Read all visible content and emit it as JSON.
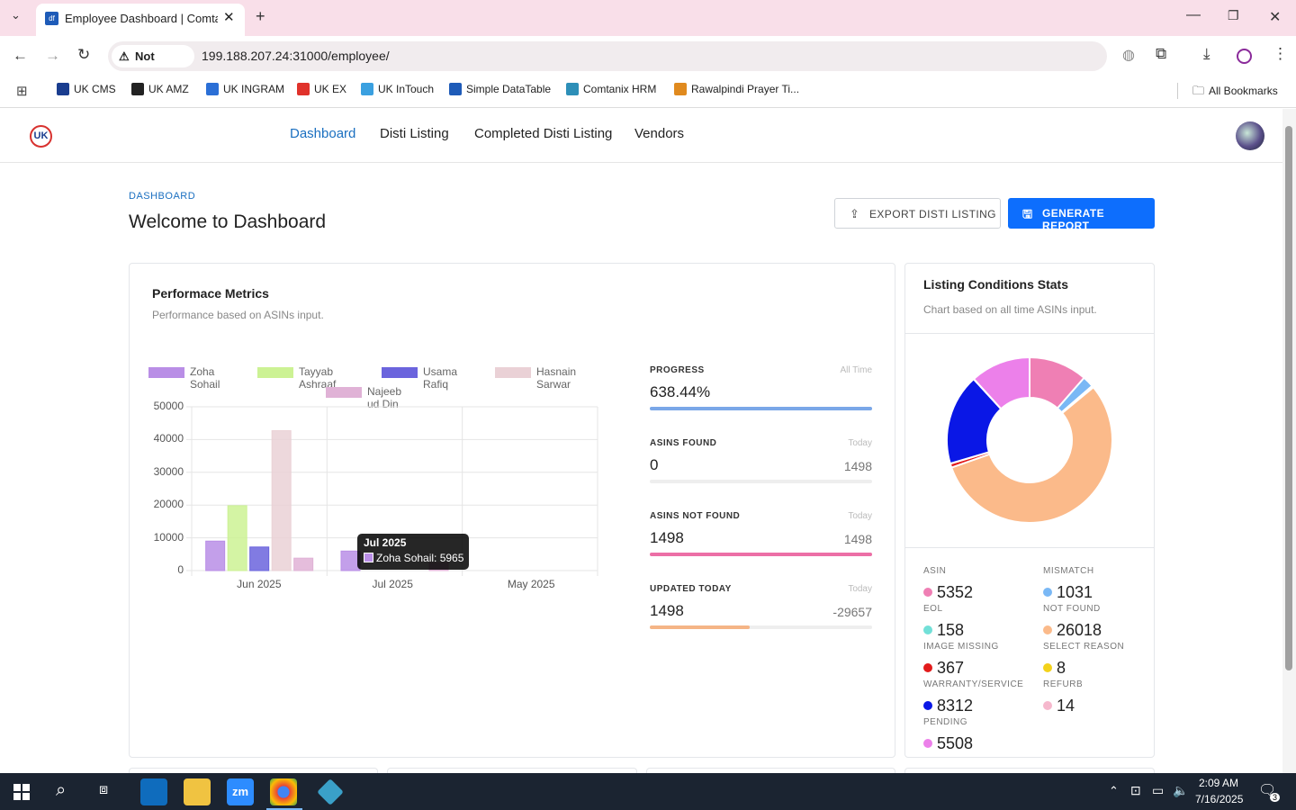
{
  "browser": {
    "tab_title": "Employee Dashboard | Comtani",
    "tab_favicon": "df",
    "not_secure": "Not secure",
    "url": "199.188.207.24:31000/employee/",
    "bookmarks": [
      {
        "label": "UK CMS",
        "color": "#1a3d8f"
      },
      {
        "label": "UK AMZ",
        "color": "#222222"
      },
      {
        "label": "UK INGRAM",
        "color": "#2b6fd6"
      },
      {
        "label": "UK EX",
        "color": "#e0322b"
      },
      {
        "label": "UK InTouch",
        "color": "#3aa0e0"
      },
      {
        "label": "Simple DataTable",
        "color": "#1e5bb8"
      },
      {
        "label": "Comtanix HRM",
        "color": "#2d8fb8"
      },
      {
        "label": "Rawalpindi Prayer Ti...",
        "color": "#e08a1e"
      }
    ],
    "all_bookmarks": "All Bookmarks"
  },
  "app": {
    "nav": [
      "Dashboard",
      "Disti Listing",
      "Completed Disti Listing",
      "Vendors"
    ],
    "breadcrumb": "DASHBOARD",
    "page_title": "Welcome to Dashboard",
    "export_btn": "EXPORT DISTI LISTING",
    "generate_btn": "GENERATE REPORT",
    "accent": "#0d6efd"
  },
  "perf": {
    "title": "Performace Metrics",
    "subtitle": "Performance based on ASINs input.",
    "tooltip_title": "Jul 2025",
    "tooltip_line": "Zoha Sohail: 5965",
    "stats": [
      {
        "label": "PROGRESS",
        "right": "All Time",
        "value": "638.44%",
        "value2": "",
        "fill": 1.0,
        "color": "#7aa7e8"
      },
      {
        "label": "ASINS FOUND",
        "right": "Today",
        "value": "0",
        "value2": "1498",
        "fill": 0,
        "color": "#7aa7e8"
      },
      {
        "label": "ASINS NOT FOUND",
        "right": "Today",
        "value": "1498",
        "value2": "1498",
        "fill": 1.0,
        "color": "#ec6fa6"
      },
      {
        "label": "UPDATED TODAY",
        "right": "Today",
        "value": "1498",
        "value2": "-29657",
        "fill": 0.45,
        "color": "#f5b586"
      }
    ]
  },
  "chart_data": {
    "type": "bar",
    "categories": [
      "Jun 2025",
      "Jul 2025",
      "May 2025"
    ],
    "ylim": [
      0,
      50000
    ],
    "yticks": [
      "50000",
      "40000",
      "30000",
      "20000",
      "10000",
      "0"
    ],
    "series": [
      {
        "name": "Zoha Sohail",
        "color": "#b98ee6",
        "values": [
          9000,
          5965,
          0
        ]
      },
      {
        "name": "Tayyab Ashraaf",
        "color": "#ccf294",
        "values": [
          19800,
          0,
          0
        ]
      },
      {
        "name": "Usama Rafiq",
        "color": "#6b64dd",
        "values": [
          7200,
          0,
          0
        ]
      },
      {
        "name": "Hasnain Sarwar",
        "color": "#ead1d6",
        "values": [
          42700,
          0,
          0
        ]
      },
      {
        "name": "Najeeb ud Din",
        "color": "#e0b2d6",
        "values": [
          3800,
          2500,
          0
        ]
      }
    ]
  },
  "listing": {
    "title": "Listing Conditions Stats",
    "subtitle": "Chart based on all time ASINs input.",
    "items": [
      {
        "label": "ASIN",
        "value": "5352",
        "color": "#ef7fb4"
      },
      {
        "label": "MISMATCH",
        "value": "1031",
        "color": "#7ab8f5"
      },
      {
        "label": "EOL",
        "value": "158",
        "color": "#72e0d8"
      },
      {
        "label": "NOT FOUND",
        "value": "26018",
        "color": "#fbba8a"
      },
      {
        "label": "IMAGE MISSING",
        "value": "367",
        "color": "#e21b1b"
      },
      {
        "label": "SELECT REASON",
        "value": "8",
        "color": "#f3d21b"
      },
      {
        "label": "WARRANTY/SERVICE",
        "value": "8312",
        "color": "#0a17e6"
      },
      {
        "label": "REFURB",
        "value": "14",
        "color": "#f6b8cd"
      },
      {
        "label": "PENDING",
        "value": "5508",
        "color": "#ec80ea"
      }
    ]
  },
  "taskbar": {
    "time": "2:09 AM",
    "date": "7/16/2025",
    "notif_count": "3"
  }
}
